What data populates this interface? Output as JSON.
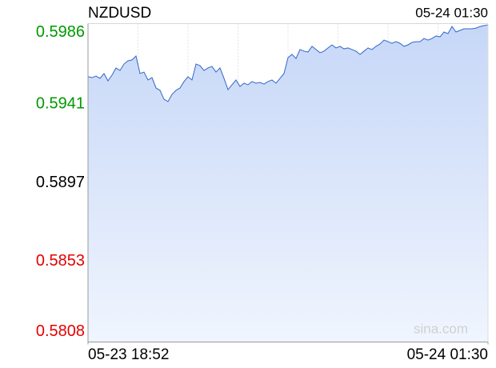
{
  "chart_data": {
    "type": "area",
    "title": "NZDUSD",
    "timestamp": "05-24 01:30",
    "watermark": "sina.com",
    "x_labels": [
      "05-23 18:52",
      "05-24 01:30"
    ],
    "values": [
      0.59563,
      0.59558,
      0.59567,
      0.59554,
      0.59581,
      0.5954,
      0.59572,
      0.59612,
      0.59598,
      0.59634,
      0.59652,
      0.59657,
      0.59679,
      0.59581,
      0.59589,
      0.59545,
      0.59558,
      0.595,
      0.59487,
      0.59437,
      0.59424,
      0.59464,
      0.59487,
      0.595,
      0.59536,
      0.59563,
      0.59545,
      0.59634,
      0.59625,
      0.59598,
      0.59612,
      0.59621,
      0.59589,
      0.59612,
      0.59554,
      0.59491,
      0.59518,
      0.59545,
      0.59509,
      0.59527,
      0.59518,
      0.59536,
      0.59527,
      0.59531,
      0.59522,
      0.59536,
      0.59545,
      0.59527,
      0.59554,
      0.59581,
      0.5967,
      0.59688,
      0.59665,
      0.59715,
      0.59706,
      0.59701,
      0.59733,
      0.59715,
      0.59697,
      0.59706,
      0.59724,
      0.59741,
      0.59724,
      0.59733,
      0.59719,
      0.59724,
      0.59715,
      0.59706,
      0.59688,
      0.59706,
      0.59724,
      0.59715,
      0.59733,
      0.59746,
      0.59768,
      0.59759,
      0.5975,
      0.59759,
      0.5975,
      0.59733,
      0.59741,
      0.59755,
      0.59759,
      0.59759,
      0.59777,
      0.59768,
      0.59777,
      0.59791,
      0.59786,
      0.59813,
      0.59804,
      0.59844,
      0.59813,
      0.59822,
      0.59831,
      0.59831,
      0.59831,
      0.59835,
      0.59844,
      0.59849,
      0.59853
    ],
    "color": "#3366cc",
    "fill_top": "#c6d7f7",
    "fill_bottom": "#f0f5fe",
    "ylim": [
      0.5808,
      0.5986
    ],
    "yticks": [
      0.5986,
      0.5941,
      0.5897,
      0.5853,
      0.5808
    ],
    "prev_close": 0.5897,
    "up_color": "#009900",
    "down_color": "#e60000",
    "flat_color": "#000000",
    "grid": true
  }
}
